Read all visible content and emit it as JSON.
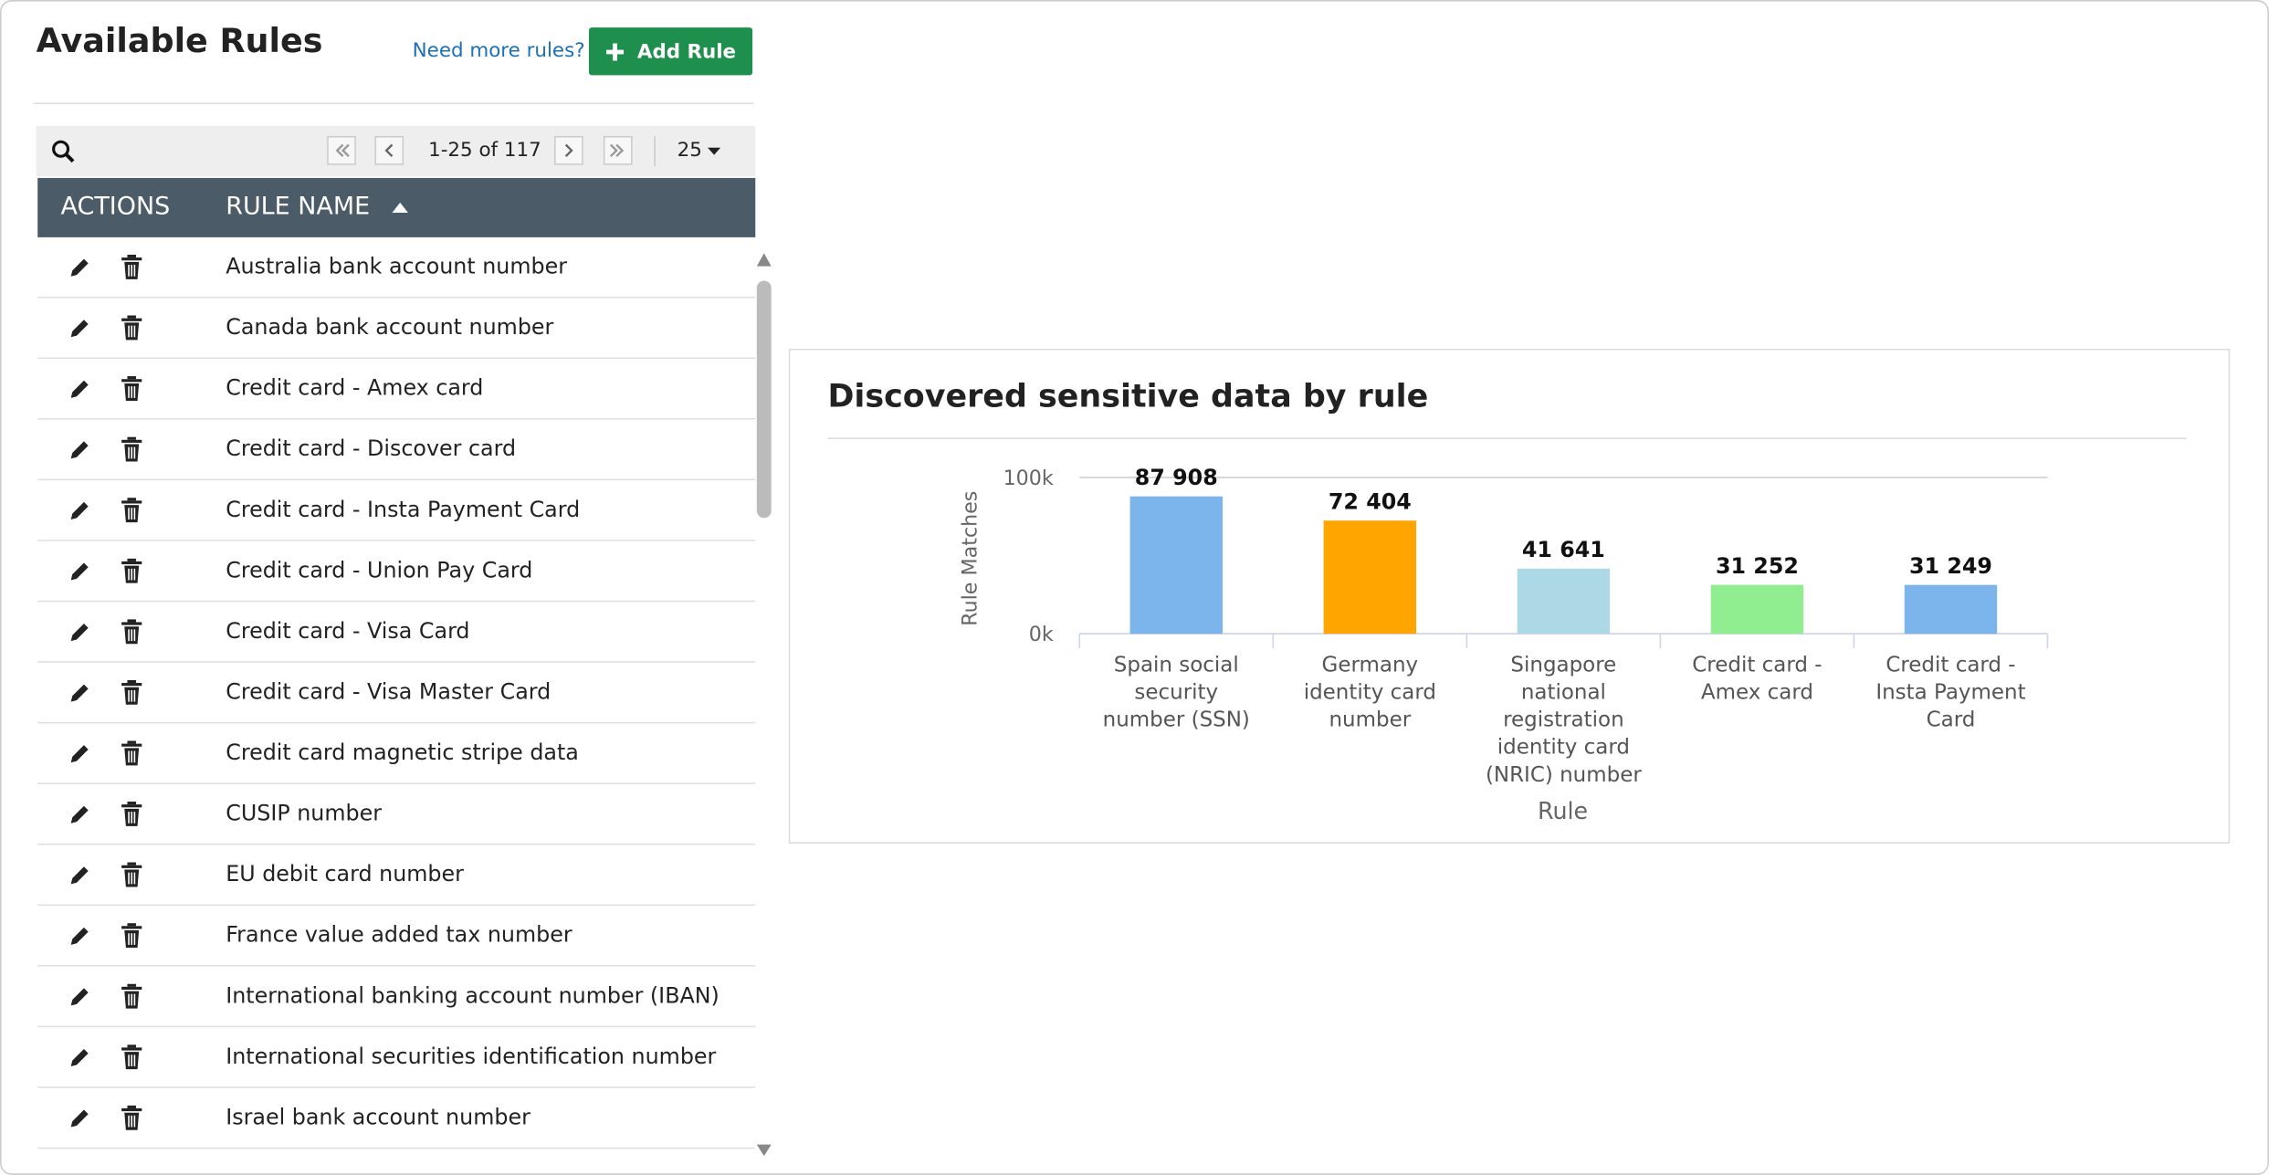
{
  "header": {
    "title": "Available Rules",
    "link": "Need more rules?",
    "button": "Add Rule"
  },
  "toolbar": {
    "range": "1-25 of 117",
    "page_size": "25"
  },
  "table": {
    "columns": [
      "ACTIONS",
      "RULE NAME"
    ],
    "rows": [
      "Australia bank account number",
      "Canada bank account number",
      "Credit card - Amex card",
      "Credit card - Discover card",
      "Credit card - Insta Payment Card",
      "Credit card - Union Pay Card",
      "Credit card - Visa Card",
      "Credit card - Visa Master Card",
      "Credit card magnetic stripe data",
      "CUSIP number",
      "EU debit card number",
      "France value added tax number",
      "International banking account number (IBAN)",
      "International securities identification number",
      "Israel bank account number"
    ]
  },
  "chart_data": {
    "type": "bar",
    "title": "Discovered sensitive data by rule",
    "x_label": "Rule",
    "y_label": "Rule Matches",
    "categories": [
      "Spain social security number (SSN)",
      "Germany identity card number",
      "Singapore national registration identity card (NRIC) number",
      "Credit card - Amex card",
      "Credit card - Insta Payment Card"
    ],
    "values": [
      87908,
      72404,
      41641,
      31252,
      31249
    ],
    "value_labels": [
      "87 908",
      "72 404",
      "41 641",
      "31 252",
      "31 249"
    ],
    "colors": [
      "#7cb5ec",
      "#ffa500",
      "#add8e6",
      "#90ee90",
      "#7cb5ec"
    ],
    "ylim": [
      0,
      100000
    ],
    "yticks": [
      {
        "value": 0,
        "label": "0k"
      },
      {
        "value": 100000,
        "label": "100k"
      }
    ],
    "grid": true
  }
}
